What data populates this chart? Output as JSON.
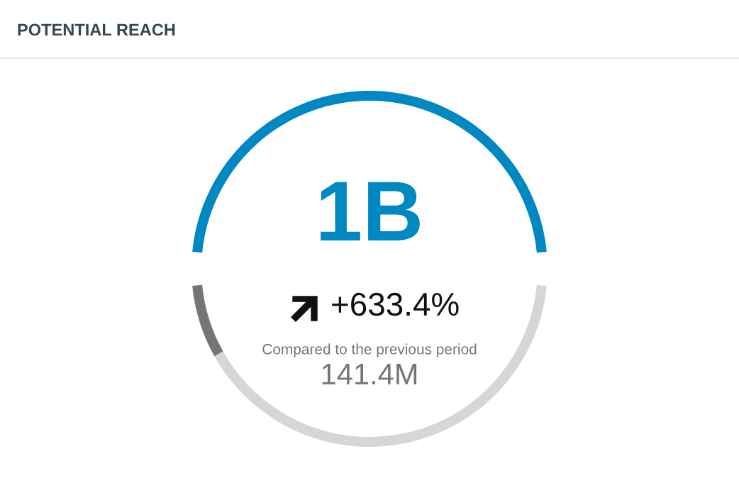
{
  "chart_data": [
    {
      "type": "other",
      "title": "POTENTIAL REACH",
      "annotations": [
        "1B",
        "+633.4%",
        "Compared to the previous period",
        "141.4M"
      ]
    },
    {
      "type": "donut",
      "categories": [
        null,
        null,
        null
      ],
      "values": [
        50,
        42.93,
        7.07
      ],
      "colors": [
        "#0088c2",
        "#d6d6d6",
        "#757575"
      ]
    }
  ]
}
